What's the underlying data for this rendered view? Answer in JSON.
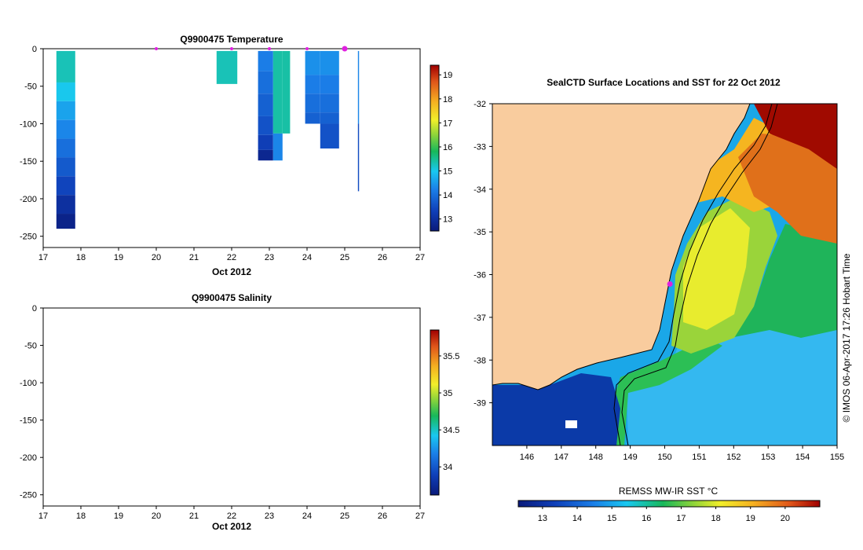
{
  "chart_data": [
    {
      "type": "heatmap",
      "title": "Q9900475  Temperature",
      "xlabel": "Oct 2012",
      "ylabel": "",
      "xlim": [
        17,
        27
      ],
      "ylim": [
        -265,
        0
      ],
      "x_ticks": [
        "17",
        "18",
        "19",
        "20",
        "21",
        "22",
        "23",
        "24",
        "25",
        "26",
        "27"
      ],
      "y_ticks": [
        "0",
        "-50",
        "-100",
        "-150",
        "-200",
        "-250"
      ],
      "colorbar": {
        "ticks": [
          "13",
          "14",
          "15",
          "16",
          "17",
          "18",
          "19"
        ],
        "range": [
          12.5,
          19.4
        ]
      },
      "profile_markers": [
        20.0,
        22.0,
        23.0,
        24.0,
        25.0
      ],
      "profiles": [
        {
          "x0": 17.35,
          "x1": 17.85,
          "segments": [
            {
              "top": -3,
              "bottom": -45,
              "value": 15.3
            },
            {
              "top": -45,
              "bottom": -70,
              "value": 15.0
            },
            {
              "top": -70,
              "bottom": -95,
              "value": 14.6
            },
            {
              "top": -95,
              "bottom": -120,
              "value": 14.3
            },
            {
              "top": -120,
              "bottom": -145,
              "value": 14.0
            },
            {
              "top": -145,
              "bottom": -170,
              "value": 13.7
            },
            {
              "top": -170,
              "bottom": -195,
              "value": 13.4
            },
            {
              "top": -195,
              "bottom": -220,
              "value": 13.0
            },
            {
              "top": -220,
              "bottom": -240,
              "value": 12.7
            }
          ]
        },
        {
          "x0": 21.6,
          "x1": 22.15,
          "segments": [
            {
              "top": -3,
              "bottom": -47,
              "value": 15.3
            }
          ]
        },
        {
          "x0": 22.7,
          "x1": 23.1,
          "segments": [
            {
              "top": -3,
              "bottom": -30,
              "value": 14.2
            },
            {
              "top": -30,
              "bottom": -60,
              "value": 14.0
            },
            {
              "top": -60,
              "bottom": -90,
              "value": 13.8
            },
            {
              "top": -90,
              "bottom": -115,
              "value": 13.6
            },
            {
              "top": -115,
              "bottom": -135,
              "value": 13.3
            },
            {
              "top": -135,
              "bottom": -149,
              "value": 12.8
            }
          ]
        },
        {
          "x0": 23.1,
          "x1": 23.35,
          "segments": [
            {
              "top": -3,
              "bottom": -113,
              "value": 15.4
            },
            {
              "top": -113,
              "bottom": -149,
              "value": 14.3
            }
          ]
        },
        {
          "x0": 23.35,
          "x1": 23.55,
          "segments": [
            {
              "top": -3,
              "bottom": -113,
              "value": 15.4
            }
          ]
        },
        {
          "x0": 23.95,
          "x1": 24.35,
          "segments": [
            {
              "top": -3,
              "bottom": -35,
              "value": 14.4
            },
            {
              "top": -35,
              "bottom": -60,
              "value": 14.2
            },
            {
              "top": -60,
              "bottom": -85,
              "value": 14.0
            },
            {
              "top": -85,
              "bottom": -100,
              "value": 13.8
            }
          ]
        },
        {
          "x0": 24.35,
          "x1": 24.85,
          "segments": [
            {
              "top": -3,
              "bottom": -35,
              "value": 14.4
            },
            {
              "top": -35,
              "bottom": -60,
              "value": 14.2
            },
            {
              "top": -60,
              "bottom": -85,
              "value": 14.0
            },
            {
              "top": -85,
              "bottom": -100,
              "value": 13.8
            },
            {
              "top": -100,
              "bottom": -133,
              "value": 13.6
            }
          ]
        },
        {
          "x0": 25.35,
          "x1": 25.38,
          "segments": [
            {
              "top": -3,
              "bottom": -100,
              "value": 14.3
            },
            {
              "top": -100,
              "bottom": -190,
              "value": 13.5
            }
          ]
        }
      ]
    },
    {
      "type": "heatmap",
      "title": "Q9900475  Salinity",
      "xlabel": "Oct 2012",
      "ylabel": "",
      "xlim": [
        17,
        27
      ],
      "ylim": [
        -265,
        0
      ],
      "x_ticks": [
        "17",
        "18",
        "19",
        "20",
        "21",
        "22",
        "23",
        "24",
        "25",
        "26",
        "27"
      ],
      "y_ticks": [
        "0",
        "-50",
        "-100",
        "-150",
        "-200",
        "-250"
      ],
      "colorbar": {
        "ticks": [
          "34",
          "34.5",
          "35",
          "35.5"
        ],
        "range": [
          33.62,
          35.85
        ]
      },
      "profiles": []
    },
    {
      "type": "heatmap",
      "title": "SealCTD Surface Locations and SST for 22 Oct 2012",
      "xlabel": "",
      "ylabel": "",
      "xlim": [
        145,
        155
      ],
      "ylim": [
        -40,
        -32
      ],
      "x_ticks": [
        "146",
        "147",
        "148",
        "149",
        "150",
        "151",
        "152",
        "153",
        "154",
        "155"
      ],
      "y_ticks": [
        "-32",
        "-33",
        "-34",
        "-35",
        "-36",
        "-37",
        "-38",
        "-39"
      ],
      "colorbar": {
        "label": "REMSS MW-IR SST °C",
        "ticks": [
          "13",
          "14",
          "15",
          "16",
          "17",
          "18",
          "19",
          "20"
        ],
        "range": [
          12.3,
          21.0
        ]
      },
      "surface_locations": [
        {
          "lon": 150.15,
          "lat": -36.22
        }
      ]
    }
  ],
  "credit": "© IMOS 06-Apr-2017 17:26 Hobart Time"
}
